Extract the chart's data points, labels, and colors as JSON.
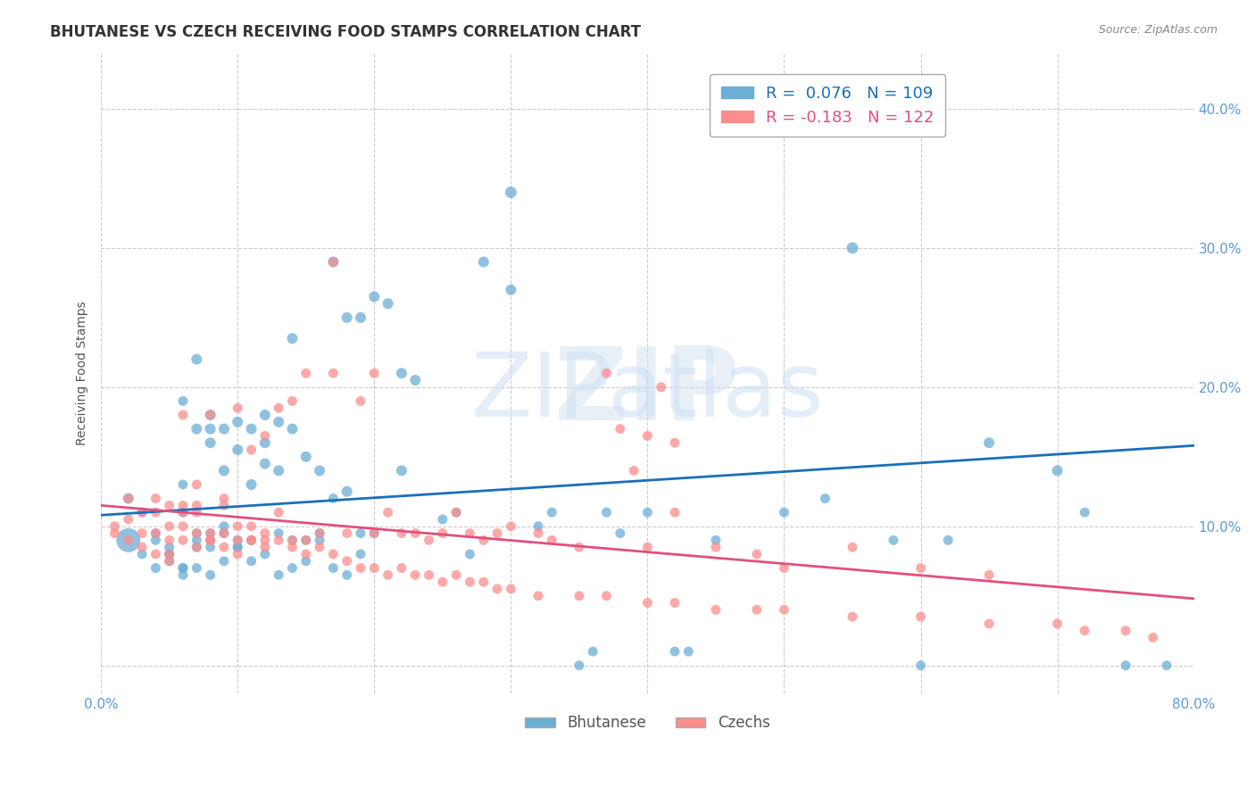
{
  "title": "BHUTANESE VS CZECH RECEIVING FOOD STAMPS CORRELATION CHART",
  "source": "Source: ZipAtlas.com",
  "xlabel": "",
  "ylabel": "Receiving Food Stamps",
  "xlim": [
    0.0,
    0.8
  ],
  "ylim": [
    -0.02,
    0.44
  ],
  "xticks": [
    0.0,
    0.1,
    0.2,
    0.3,
    0.4,
    0.5,
    0.6,
    0.7,
    0.8
  ],
  "yticks": [
    0.0,
    0.1,
    0.2,
    0.3,
    0.4
  ],
  "ytick_labels": [
    "",
    "10.0%",
    "20.0%",
    "30.0%",
    "40.0%"
  ],
  "xtick_labels": [
    "0.0%",
    "",
    "",
    "",
    "",
    "",
    "",
    "",
    "80.0%"
  ],
  "blue_R": 0.076,
  "blue_N": 109,
  "pink_R": -0.183,
  "pink_N": 122,
  "blue_color": "#6baed6",
  "pink_color": "#fc8d8d",
  "blue_line_color": "#1a6fba",
  "pink_line_color": "#e05080",
  "axis_color": "#5b9bd5",
  "grid_color": "#cccccc",
  "watermark_color": "#d0e0f0",
  "background_color": "#ffffff",
  "blue_scatter": {
    "x": [
      0.02,
      0.03,
      0.04,
      0.04,
      0.05,
      0.05,
      0.05,
      0.06,
      0.06,
      0.06,
      0.06,
      0.06,
      0.07,
      0.07,
      0.07,
      0.07,
      0.07,
      0.08,
      0.08,
      0.08,
      0.08,
      0.08,
      0.08,
      0.09,
      0.09,
      0.09,
      0.09,
      0.1,
      0.1,
      0.1,
      0.1,
      0.11,
      0.11,
      0.11,
      0.12,
      0.12,
      0.12,
      0.13,
      0.13,
      0.13,
      0.14,
      0.14,
      0.14,
      0.15,
      0.15,
      0.16,
      0.16,
      0.17,
      0.17,
      0.18,
      0.18,
      0.19,
      0.19,
      0.2,
      0.21,
      0.22,
      0.22,
      0.23,
      0.25,
      0.26,
      0.27,
      0.28,
      0.3,
      0.3,
      0.32,
      0.33,
      0.35,
      0.36,
      0.37,
      0.38,
      0.4,
      0.42,
      0.43,
      0.45,
      0.5,
      0.53,
      0.55,
      0.58,
      0.6,
      0.62,
      0.65,
      0.7,
      0.72,
      0.75,
      0.78,
      0.02,
      0.03,
      0.04,
      0.05,
      0.06,
      0.07,
      0.08,
      0.09,
      0.1,
      0.11,
      0.12,
      0.13,
      0.14,
      0.15,
      0.16,
      0.17,
      0.18,
      0.19,
      0.2
    ],
    "y": [
      0.12,
      0.11,
      0.095,
      0.09,
      0.085,
      0.08,
      0.075,
      0.07,
      0.065,
      0.11,
      0.13,
      0.19,
      0.09,
      0.095,
      0.085,
      0.17,
      0.22,
      0.18,
      0.17,
      0.16,
      0.085,
      0.09,
      0.095,
      0.17,
      0.14,
      0.1,
      0.095,
      0.175,
      0.155,
      0.085,
      0.09,
      0.17,
      0.13,
      0.09,
      0.145,
      0.16,
      0.18,
      0.095,
      0.175,
      0.14,
      0.09,
      0.17,
      0.235,
      0.09,
      0.15,
      0.095,
      0.14,
      0.12,
      0.29,
      0.25,
      0.125,
      0.095,
      0.25,
      0.265,
      0.26,
      0.14,
      0.21,
      0.205,
      0.105,
      0.11,
      0.08,
      0.29,
      0.34,
      0.27,
      0.1,
      0.11,
      0.0,
      0.01,
      0.11,
      0.095,
      0.11,
      0.01,
      0.01,
      0.09,
      0.11,
      0.12,
      0.3,
      0.09,
      0.0,
      0.09,
      0.16,
      0.14,
      0.11,
      0.0,
      0.0,
      0.09,
      0.08,
      0.07,
      0.08,
      0.07,
      0.07,
      0.065,
      0.075,
      0.085,
      0.075,
      0.08,
      0.065,
      0.07,
      0.075,
      0.09,
      0.07,
      0.065,
      0.08,
      0.095
    ],
    "sizes": [
      30,
      25,
      25,
      25,
      25,
      25,
      25,
      25,
      25,
      25,
      25,
      25,
      25,
      25,
      25,
      30,
      30,
      30,
      30,
      30,
      25,
      25,
      25,
      30,
      30,
      25,
      25,
      30,
      30,
      25,
      25,
      30,
      30,
      25,
      30,
      30,
      30,
      25,
      30,
      30,
      25,
      30,
      30,
      25,
      30,
      25,
      30,
      25,
      30,
      30,
      30,
      25,
      30,
      30,
      30,
      30,
      30,
      30,
      25,
      25,
      25,
      30,
      35,
      30,
      25,
      25,
      25,
      25,
      25,
      25,
      25,
      25,
      25,
      25,
      25,
      25,
      35,
      25,
      25,
      25,
      30,
      30,
      25,
      25,
      25,
      150,
      25,
      25,
      25,
      25,
      25,
      25,
      25,
      25,
      25,
      25,
      25,
      25,
      25,
      25,
      25,
      25,
      25,
      25
    ]
  },
  "pink_scatter": {
    "x": [
      0.01,
      0.02,
      0.02,
      0.03,
      0.03,
      0.04,
      0.04,
      0.04,
      0.05,
      0.05,
      0.05,
      0.05,
      0.06,
      0.06,
      0.06,
      0.06,
      0.07,
      0.07,
      0.07,
      0.07,
      0.08,
      0.08,
      0.08,
      0.09,
      0.09,
      0.09,
      0.1,
      0.1,
      0.1,
      0.11,
      0.11,
      0.11,
      0.12,
      0.12,
      0.12,
      0.13,
      0.13,
      0.14,
      0.14,
      0.15,
      0.15,
      0.16,
      0.17,
      0.17,
      0.18,
      0.19,
      0.2,
      0.2,
      0.21,
      0.22,
      0.23,
      0.24,
      0.25,
      0.26,
      0.27,
      0.28,
      0.29,
      0.3,
      0.32,
      0.33,
      0.35,
      0.37,
      0.4,
      0.42,
      0.45,
      0.48,
      0.5,
      0.55,
      0.6,
      0.65,
      0.01,
      0.02,
      0.03,
      0.04,
      0.05,
      0.06,
      0.07,
      0.08,
      0.09,
      0.1,
      0.11,
      0.12,
      0.13,
      0.14,
      0.15,
      0.16,
      0.17,
      0.18,
      0.19,
      0.2,
      0.21,
      0.22,
      0.23,
      0.24,
      0.25,
      0.26,
      0.27,
      0.28,
      0.29,
      0.3,
      0.32,
      0.35,
      0.37,
      0.4,
      0.42,
      0.45,
      0.48,
      0.5,
      0.55,
      0.6,
      0.65,
      0.7,
      0.72,
      0.75,
      0.77,
      0.38,
      0.39,
      0.4,
      0.41,
      0.42
    ],
    "y": [
      0.1,
      0.12,
      0.105,
      0.11,
      0.095,
      0.11,
      0.095,
      0.12,
      0.08,
      0.1,
      0.09,
      0.115,
      0.09,
      0.1,
      0.115,
      0.18,
      0.11,
      0.115,
      0.095,
      0.13,
      0.09,
      0.095,
      0.18,
      0.115,
      0.12,
      0.095,
      0.09,
      0.1,
      0.185,
      0.09,
      0.1,
      0.155,
      0.09,
      0.095,
      0.165,
      0.11,
      0.185,
      0.09,
      0.19,
      0.09,
      0.21,
      0.095,
      0.29,
      0.21,
      0.095,
      0.19,
      0.095,
      0.21,
      0.11,
      0.095,
      0.095,
      0.09,
      0.095,
      0.11,
      0.095,
      0.09,
      0.095,
      0.1,
      0.095,
      0.09,
      0.085,
      0.21,
      0.085,
      0.11,
      0.085,
      0.08,
      0.07,
      0.085,
      0.07,
      0.065,
      0.095,
      0.09,
      0.085,
      0.08,
      0.075,
      0.11,
      0.085,
      0.09,
      0.085,
      0.08,
      0.09,
      0.085,
      0.09,
      0.085,
      0.08,
      0.085,
      0.08,
      0.075,
      0.07,
      0.07,
      0.065,
      0.07,
      0.065,
      0.065,
      0.06,
      0.065,
      0.06,
      0.06,
      0.055,
      0.055,
      0.05,
      0.05,
      0.05,
      0.045,
      0.045,
      0.04,
      0.04,
      0.04,
      0.035,
      0.035,
      0.03,
      0.03,
      0.025,
      0.025,
      0.02,
      0.17,
      0.14,
      0.165,
      0.2,
      0.16
    ],
    "sizes": [
      25,
      25,
      25,
      25,
      25,
      25,
      25,
      25,
      25,
      25,
      25,
      25,
      25,
      25,
      25,
      25,
      25,
      25,
      25,
      25,
      25,
      25,
      25,
      25,
      25,
      25,
      25,
      25,
      25,
      25,
      25,
      25,
      25,
      25,
      25,
      25,
      25,
      25,
      25,
      25,
      25,
      25,
      25,
      25,
      25,
      25,
      25,
      25,
      25,
      25,
      25,
      25,
      25,
      25,
      25,
      25,
      25,
      25,
      25,
      25,
      25,
      25,
      25,
      25,
      25,
      25,
      25,
      25,
      25,
      25,
      25,
      25,
      25,
      25,
      25,
      25,
      25,
      25,
      25,
      25,
      25,
      25,
      25,
      25,
      25,
      25,
      25,
      25,
      25,
      25,
      25,
      25,
      25,
      25,
      25,
      25,
      25,
      25,
      25,
      25,
      25,
      25,
      25,
      25,
      25,
      25,
      25,
      25,
      25,
      25,
      25,
      25,
      25,
      25,
      25,
      25,
      25,
      25,
      25,
      25
    ]
  },
  "blue_line": {
    "x0": 0.0,
    "x1": 0.8,
    "y0": 0.108,
    "y1": 0.158
  },
  "pink_line": {
    "x0": 0.0,
    "x1": 0.8,
    "y0": 0.115,
    "y1": 0.048
  },
  "legend_loc": "upper right",
  "title_fontsize": 12,
  "axis_label_fontsize": 10,
  "tick_fontsize": 11
}
